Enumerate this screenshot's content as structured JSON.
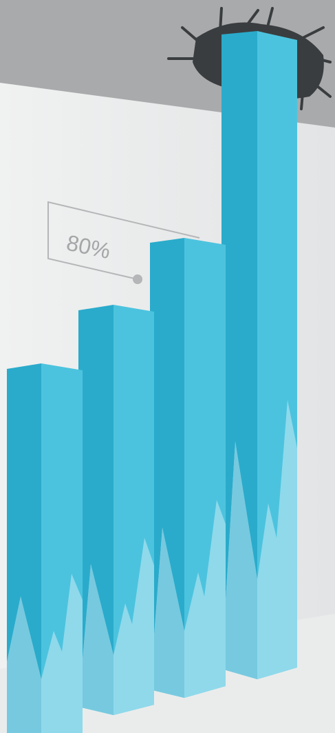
{
  "callout": {
    "label": "80%"
  }
}
